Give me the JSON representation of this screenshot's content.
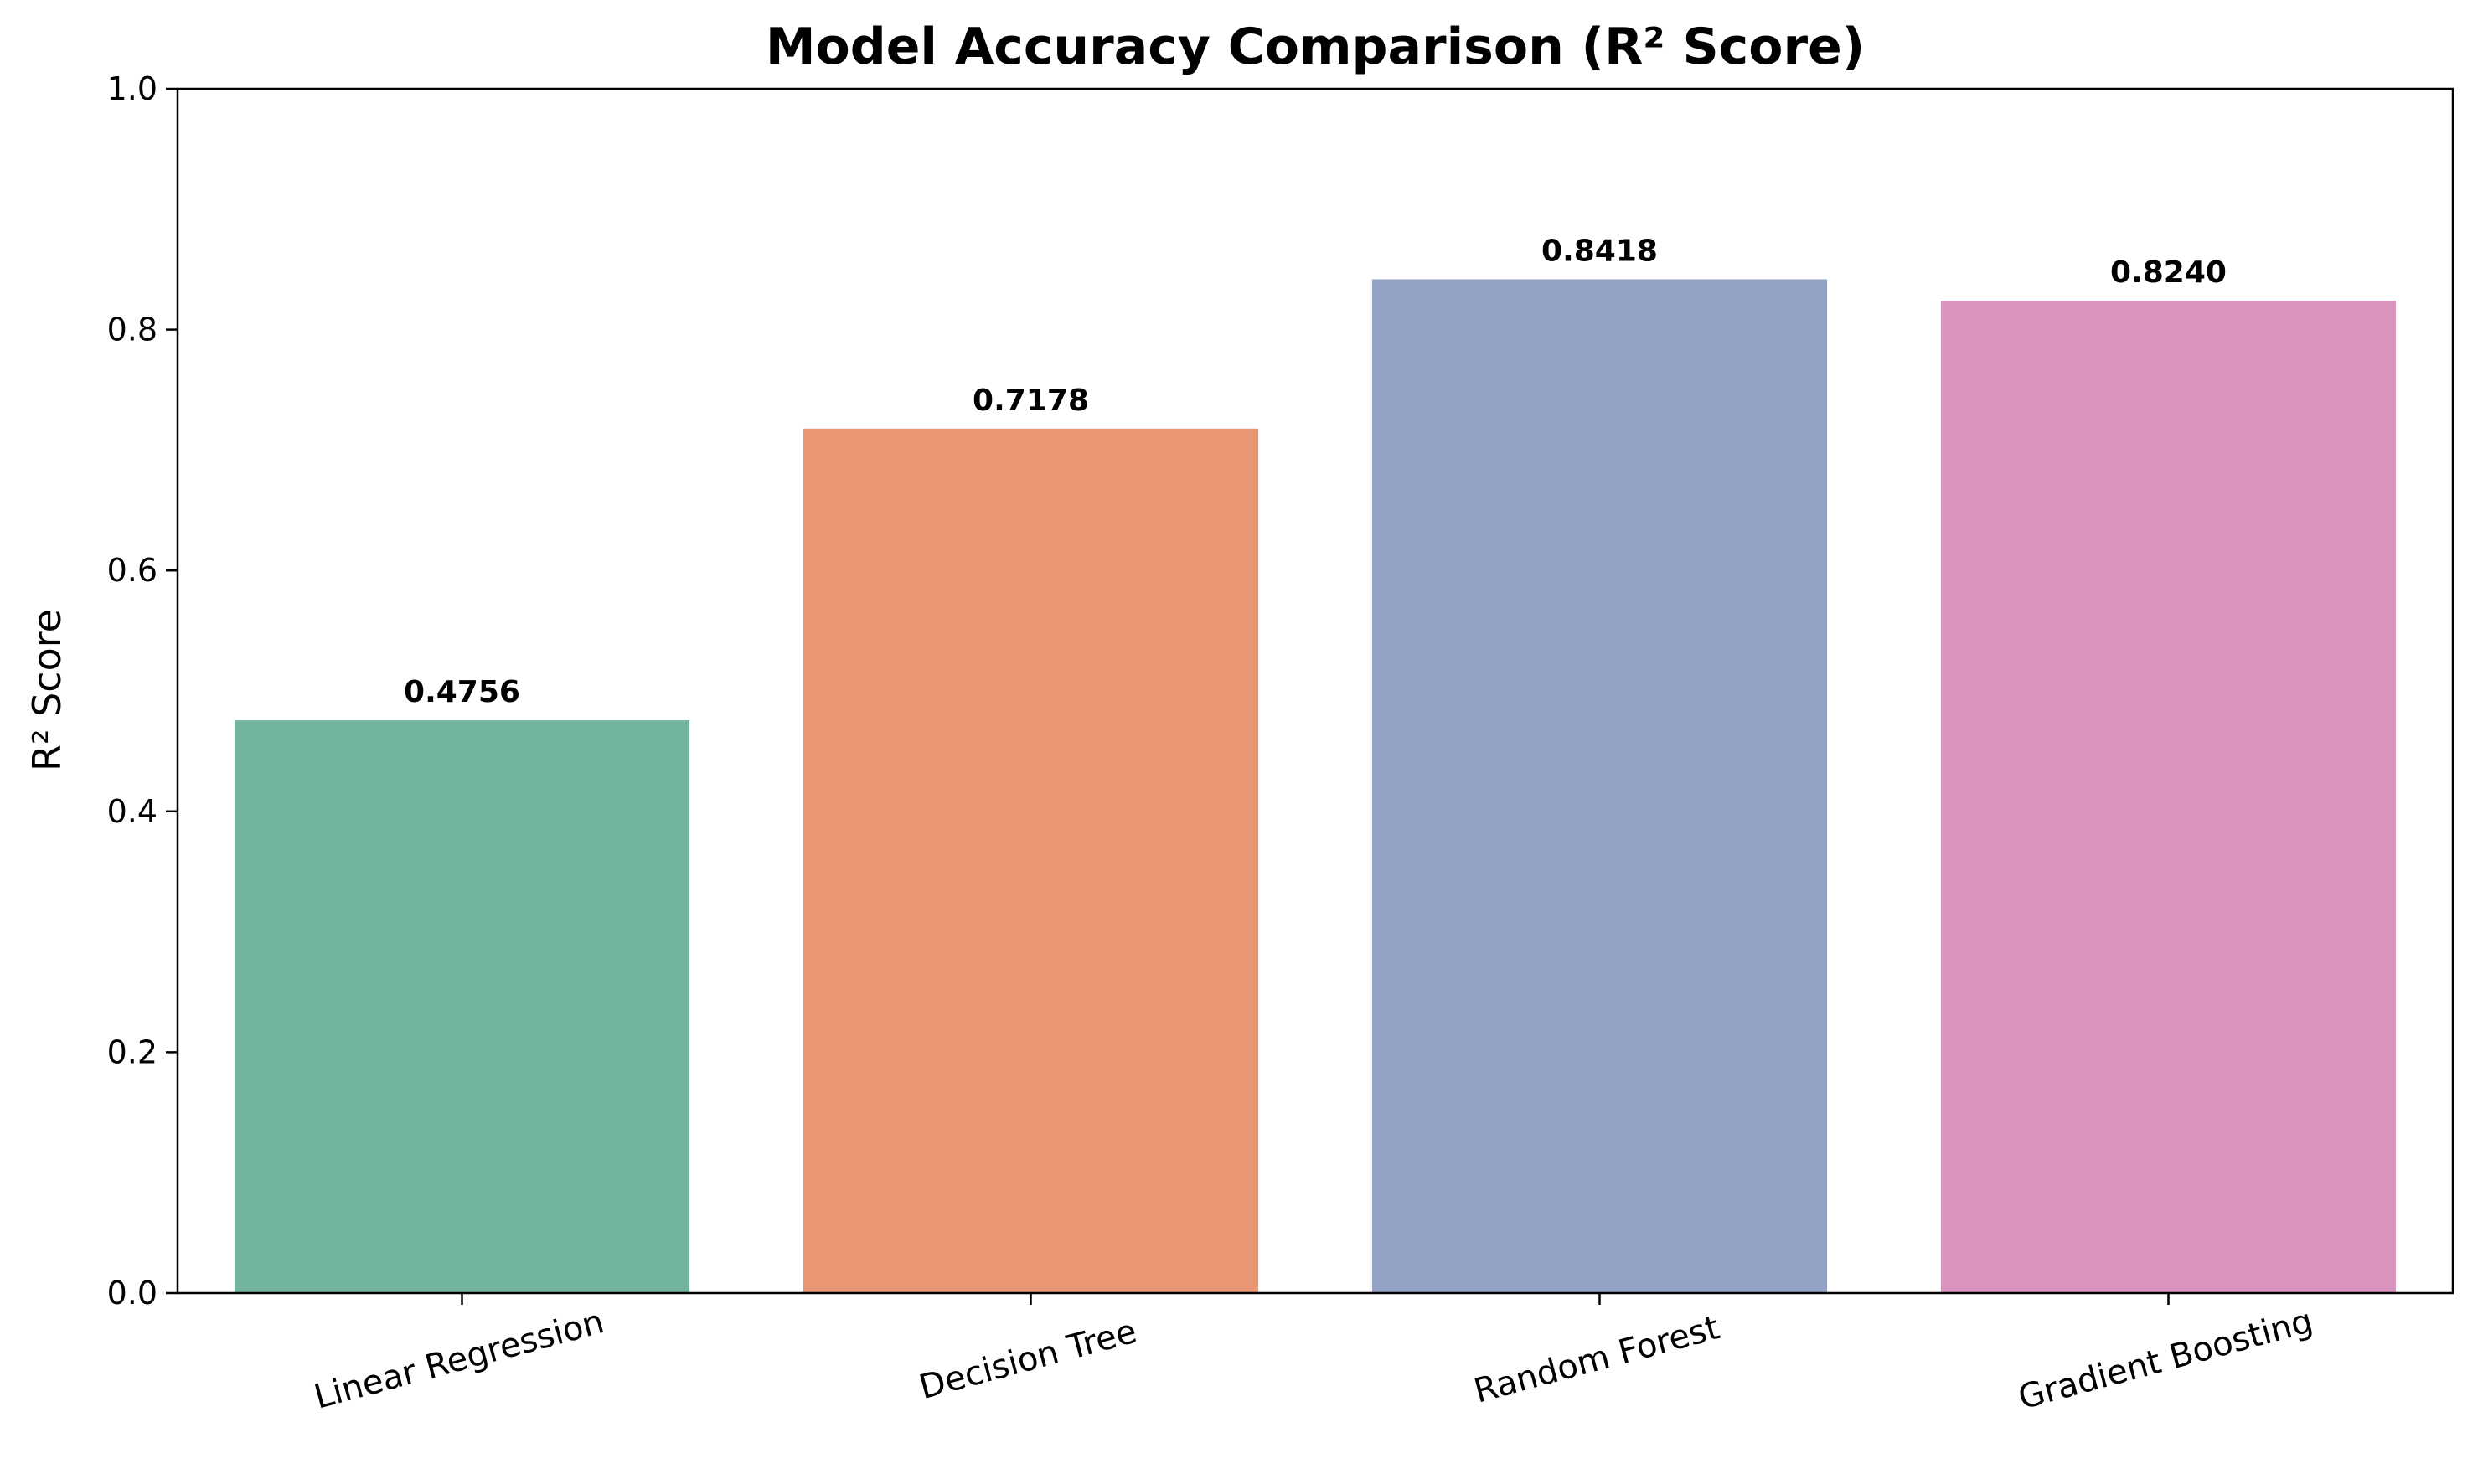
{
  "chart_data": {
    "type": "bar",
    "title": "Model Accuracy Comparison (R² Score)",
    "xlabel": "",
    "ylabel": "R² Score",
    "categories": [
      "Linear Regression",
      "Decision Tree",
      "Random Forest",
      "Gradient Boosting"
    ],
    "values": [
      0.4756,
      0.7178,
      0.8418,
      0.824
    ],
    "value_labels": [
      "0.4756",
      "0.7178",
      "0.8418",
      "0.8240"
    ],
    "colors": [
      "#73b49f",
      "#e89674",
      "#94a3c3",
      "#db94bd"
    ],
    "ylim": [
      0,
      1.0
    ],
    "yticks": [
      0.0,
      0.2,
      0.4,
      0.6,
      0.8,
      1.0
    ],
    "ytick_labels": [
      "0.0",
      "0.2",
      "0.4",
      "0.6",
      "0.8",
      "1.0"
    ],
    "grid": false,
    "x_tick_rotation": "15 degrees"
  }
}
